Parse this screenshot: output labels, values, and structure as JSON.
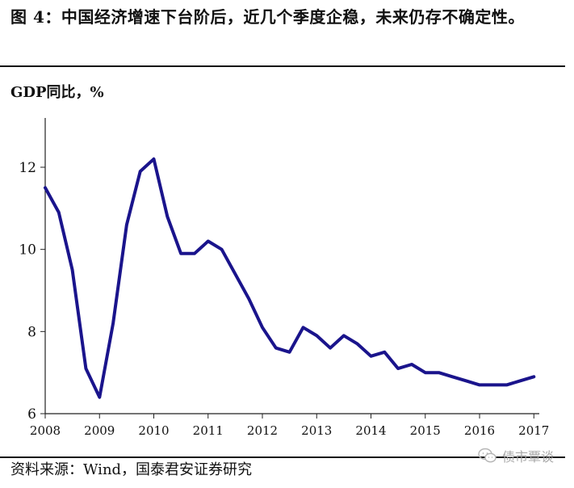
{
  "figure": {
    "title": "图 4：中国经济增速下台阶后，近几个季度企稳，未来仍存不确定性。",
    "source": "资料来源：Wind，国泰君安证券研究",
    "watermark": "债市覃谈",
    "watermark_icon": "wechat-icon"
  },
  "chart_data": {
    "type": "line",
    "title": "",
    "xlabel": "",
    "ylabel": "GDP同比，%",
    "xlim": [
      2008,
      2017.1
    ],
    "ylim": [
      6,
      13.2
    ],
    "x_ticks": [
      2008,
      2009,
      2010,
      2011,
      2012,
      2013,
      2014,
      2015,
      2016,
      2017
    ],
    "y_ticks": [
      6,
      8,
      10,
      12
    ],
    "grid": false,
    "legend": "none",
    "line_color": "#1a148c",
    "series": [
      {
        "name": "",
        "x": [
          2008.0,
          2008.25,
          2008.5,
          2008.75,
          2009.0,
          2009.25,
          2009.5,
          2009.75,
          2010.0,
          2010.25,
          2010.5,
          2010.75,
          2011.0,
          2011.25,
          2011.5,
          2011.75,
          2012.0,
          2012.25,
          2012.5,
          2012.75,
          2013.0,
          2013.25,
          2013.5,
          2013.75,
          2014.0,
          2014.25,
          2014.5,
          2014.75,
          2015.0,
          2015.25,
          2015.5,
          2015.75,
          2016.0,
          2016.25,
          2016.5,
          2016.75,
          2017.0
        ],
        "y": [
          11.5,
          10.9,
          9.5,
          7.1,
          6.4,
          8.2,
          10.6,
          11.9,
          12.2,
          10.8,
          9.9,
          9.9,
          10.2,
          10.0,
          9.4,
          8.8,
          8.1,
          7.6,
          7.5,
          8.1,
          7.9,
          7.6,
          7.9,
          7.7,
          7.4,
          7.5,
          7.1,
          7.2,
          7.0,
          7.0,
          6.9,
          6.8,
          6.7,
          6.7,
          6.7,
          6.8,
          6.9
        ]
      }
    ]
  }
}
